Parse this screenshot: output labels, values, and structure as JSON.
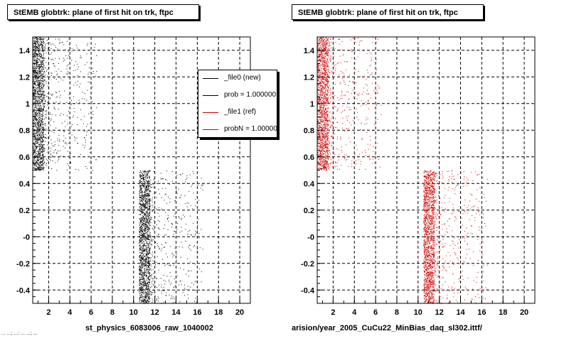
{
  "panels": [
    {
      "title": "StEMB globtrk: plane of first hit on trk, ftpc",
      "xaxis_title": "st_physics_6083006_raw_1040002",
      "footer": "... ...; ...: ... ...; ...",
      "legend": [
        {
          "label": "_file0 (new)",
          "color": "#000000"
        },
        {
          "label": "prob = 1.000000",
          "color": "#000000"
        },
        {
          "label": "_file1 (ref)",
          "color": "#cc0000"
        },
        {
          "label": "probN = 1.000000",
          "color": "#cc0000"
        }
      ]
    },
    {
      "title": "StEMB globtrk: plane of first hit on trk, ftpc",
      "xaxis_title": "arision/year_2005_CuCu22_MinBias_daq_sl302.ittf/"
    }
  ],
  "chart_data": [
    {
      "type": "scatter",
      "title": "StEMB globtrk: plane of first hit on trk, ftpc",
      "xlabel": "st_physics_6083006_raw_1040002",
      "ylabel": "",
      "xlim": [
        0.5,
        21
      ],
      "ylim": [
        -0.5,
        1.5
      ],
      "grid": true,
      "xticks": [
        "2",
        "4",
        "6",
        "8",
        "10",
        "12",
        "14",
        "16",
        "18",
        "20"
      ],
      "yticks": [
        "-0.4",
        "-0.2",
        "-0",
        "0.2",
        "0.4",
        "0.6",
        "0.8",
        "1",
        "1.2",
        "1.4"
      ],
      "marker_color": "#000000",
      "series": [
        {
          "name": "_file0 (new)",
          "clusters": [
            {
              "x": [
                0.5,
                1.5
              ],
              "y": [
                0.5,
                1.5
              ],
              "density": "high"
            },
            {
              "x": [
                1.5,
                6.5
              ],
              "y": [
                0.5,
                1.5
              ],
              "density": "low"
            },
            {
              "x": [
                10.5,
                11.5
              ],
              "y": [
                -0.5,
                0.5
              ],
              "density": "high"
            },
            {
              "x": [
                11.5,
                16.5
              ],
              "y": [
                -0.5,
                0.5
              ],
              "density": "low"
            }
          ]
        }
      ]
    },
    {
      "type": "scatter",
      "title": "StEMB globtrk: plane of first hit on trk, ftpc",
      "xlabel": "arision/year_2005_CuCu22_MinBias_daq_sl302.ittf/",
      "ylabel": "",
      "xlim": [
        0.5,
        21
      ],
      "ylim": [
        -0.5,
        1.5
      ],
      "grid": true,
      "xticks": [
        "2",
        "4",
        "6",
        "8",
        "10",
        "12",
        "14",
        "16",
        "18",
        "20"
      ],
      "yticks": [
        "-0.4",
        "-0.2",
        "-0",
        "0.2",
        "0.4",
        "0.6",
        "0.8",
        "1",
        "1.2",
        "1.4"
      ],
      "marker_color": "#cc0000",
      "series": [
        {
          "name": "_file1 (ref)",
          "clusters": [
            {
              "x": [
                0.5,
                1.5
              ],
              "y": [
                0.5,
                1.5
              ],
              "density": "high"
            },
            {
              "x": [
                1.5,
                6.5
              ],
              "y": [
                0.5,
                1.5
              ],
              "density": "low"
            },
            {
              "x": [
                10.5,
                11.5
              ],
              "y": [
                -0.5,
                0.5
              ],
              "density": "high"
            },
            {
              "x": [
                11.5,
                16.5
              ],
              "y": [
                -0.5,
                0.5
              ],
              "density": "low"
            }
          ]
        }
      ]
    }
  ]
}
